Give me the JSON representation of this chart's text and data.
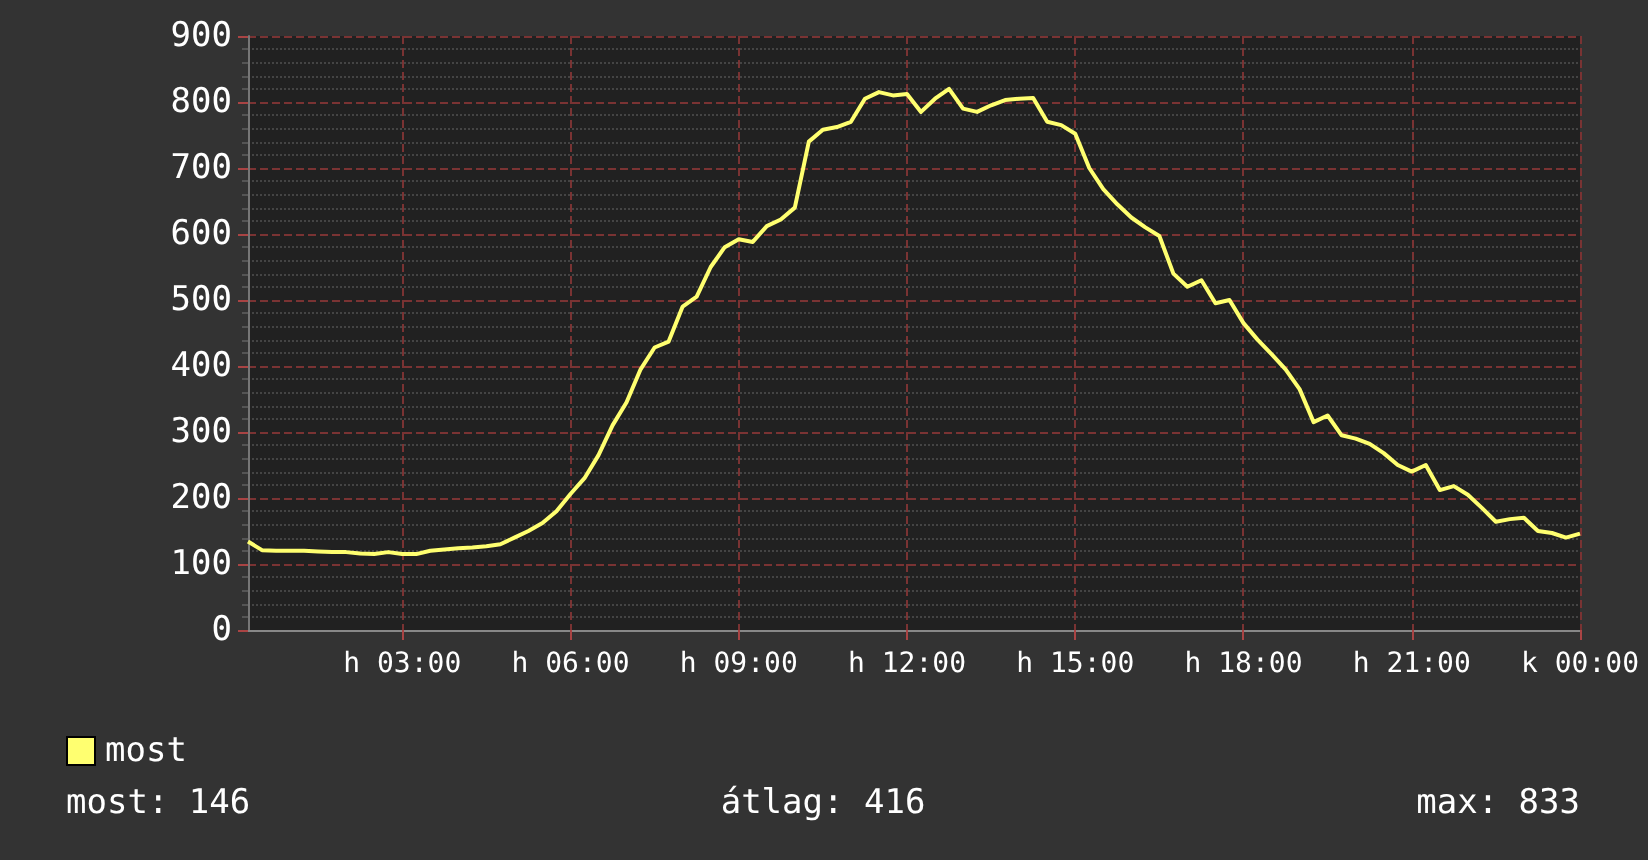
{
  "chart_data": {
    "type": "line",
    "categories": [
      null,
      null,
      null,
      null,
      null,
      null,
      null,
      null,
      null,
      null,
      null,
      "h 03:00",
      null,
      null,
      null,
      null,
      null,
      null,
      null,
      null,
      null,
      null,
      null,
      "h 06:00",
      null,
      null,
      null,
      null,
      null,
      null,
      null,
      null,
      null,
      null,
      null,
      "h 09:00",
      null,
      null,
      null,
      null,
      null,
      null,
      null,
      null,
      null,
      null,
      null,
      "h 12:00",
      null,
      null,
      null,
      null,
      null,
      null,
      null,
      null,
      null,
      null,
      null,
      "h 15:00",
      null,
      null,
      null,
      null,
      null,
      null,
      null,
      null,
      null,
      null,
      null,
      "h 18:00",
      null,
      null,
      null,
      null,
      null,
      null,
      null,
      null,
      null,
      null,
      null,
      "h 21:00",
      null,
      null,
      null,
      null,
      null,
      null,
      null,
      null,
      null,
      null,
      null,
      "k 00:00"
    ],
    "series": [
      {
        "name": "most",
        "color": "#ffff70",
        "values": [
          134,
          121,
          120,
          120,
          120,
          119,
          118,
          118,
          116,
          115,
          118,
          115,
          115,
          120,
          122,
          124,
          125,
          127,
          130,
          140,
          150,
          162,
          180,
          206,
          230,
          265,
          310,
          345,
          395,
          428,
          437,
          490,
          505,
          550,
          580,
          592,
          588,
          612,
          622,
          640,
          740,
          758,
          762,
          770,
          805,
          815,
          810,
          812,
          785,
          805,
          820,
          790,
          785,
          795,
          803,
          805,
          806,
          770,
          765,
          752,
          700,
          668,
          645,
          625,
          610,
          597,
          540,
          520,
          530,
          495,
          500,
          465,
          440,
          418,
          395,
          365,
          315,
          325,
          295,
          290,
          282,
          268,
          250,
          240,
          250,
          212,
          218,
          205,
          185,
          164,
          168,
          170,
          150,
          147,
          140,
          146
        ]
      }
    ],
    "ylim": [
      0,
      900
    ],
    "yticks": [
      0,
      100,
      200,
      300,
      400,
      500,
      600,
      700,
      800,
      900
    ],
    "grid": true,
    "legend": "bottom left",
    "marker": "none",
    "line_style": "solid",
    "annotations": [
      "most: 146",
      "átlag: 416",
      "max: 833"
    ]
  }
}
